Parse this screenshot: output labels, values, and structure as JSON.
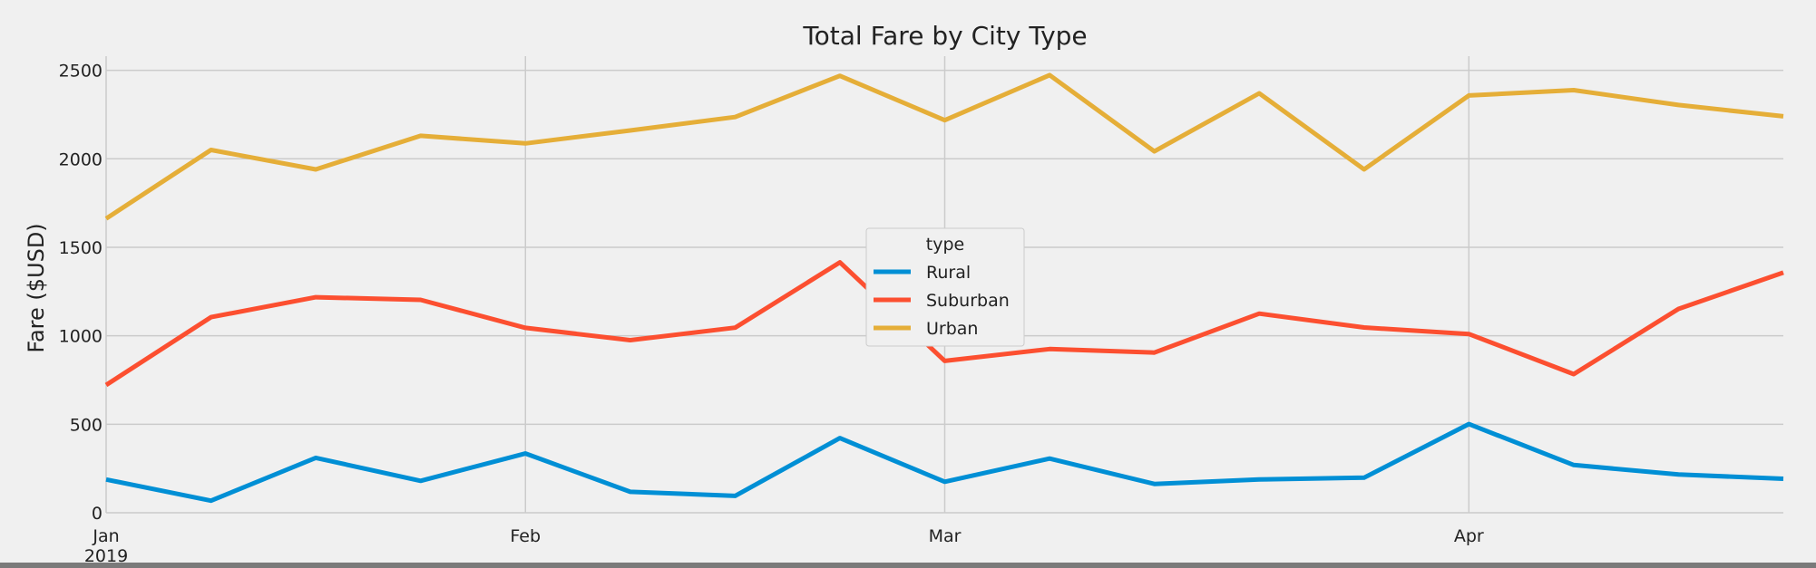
{
  "chart_data": {
    "type": "line",
    "title": "Total Fare by City Type",
    "xlabel": "",
    "ylabel": "Fare ($USD)",
    "x": [
      "2019-01-06",
      "2019-01-13",
      "2019-01-20",
      "2019-01-27",
      "2019-02-03",
      "2019-02-10",
      "2019-02-17",
      "2019-02-24",
      "2019-03-03",
      "2019-03-10",
      "2019-03-17",
      "2019-03-24",
      "2019-03-31",
      "2019-04-07",
      "2019-04-14",
      "2019-04-21",
      "2019-04-28"
    ],
    "xlim": [
      "2019-01-06",
      "2019-04-28"
    ],
    "ylim": [
      0,
      2580
    ],
    "yticks": [
      0,
      500,
      1000,
      1500,
      2000,
      2500
    ],
    "xticks": [
      {
        "date": "2019-01-06",
        "label": "Jan",
        "sublabel": "2019"
      },
      {
        "date": "2019-02-03",
        "label": "Feb",
        "sublabel": ""
      },
      {
        "date": "2019-03-03",
        "label": "Mar",
        "sublabel": ""
      },
      {
        "date": "2019-04-07",
        "label": "Apr",
        "sublabel": ""
      }
    ],
    "grid": true,
    "legend": {
      "title": "type",
      "placement": "center"
    },
    "series": [
      {
        "name": "Rural",
        "color": "#008fd5",
        "values": [
          188,
          68,
          310,
          180,
          335,
          118,
          95,
          422,
          175,
          306,
          163,
          188,
          198,
          501,
          270,
          216,
          192
        ]
      },
      {
        "name": "Suburban",
        "color": "#fc4f30",
        "values": [
          722,
          1105,
          1218,
          1203,
          1045,
          975,
          1046,
          1415,
          858,
          925,
          905,
          1125,
          1047,
          1010,
          783,
          1152,
          1357
        ]
      },
      {
        "name": "Urban",
        "color": "#e5ae38",
        "values": [
          1662,
          2050,
          1940,
          2130,
          2087,
          2160,
          2236,
          2469,
          2218,
          2473,
          2042,
          2370,
          1940,
          2358,
          2388,
          2304,
          2240
        ]
      }
    ]
  }
}
